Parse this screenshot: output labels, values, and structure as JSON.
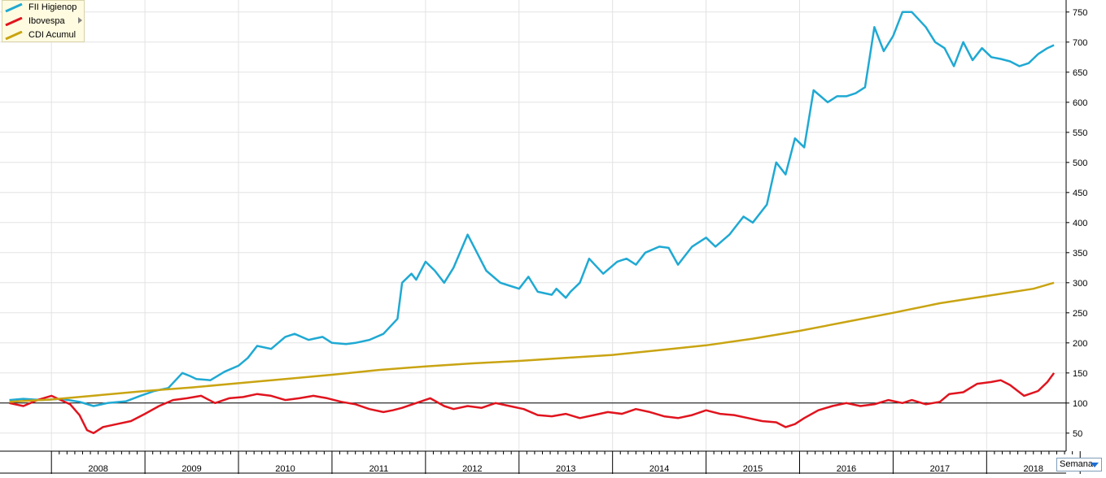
{
  "legend": {
    "items": [
      {
        "label": "FII Higienop",
        "color": "#1fa9d3"
      },
      {
        "label": "Ibovespa",
        "color": "#e0141e"
      },
      {
        "label": "CDI Acumul",
        "color": "#c9a412"
      }
    ]
  },
  "period_selector": {
    "label": "Semana"
  },
  "chart_data": {
    "type": "line",
    "title": "",
    "xlabel": "",
    "ylabel": "",
    "x_tick_labels": [
      "2008",
      "2009",
      "2010",
      "2011",
      "2012",
      "2013",
      "2014",
      "2015",
      "2016",
      "2017",
      "2018"
    ],
    "y_ticks": [
      50,
      100,
      150,
      200,
      250,
      300,
      350,
      400,
      450,
      500,
      550,
      600,
      650,
      700,
      750
    ],
    "ylim": [
      20,
      770
    ],
    "xlim": [
      2007.45,
      2018.85
    ],
    "grid": true,
    "legend_position": "top-left",
    "reference_line": 100,
    "series": [
      {
        "name": "FII Higienop",
        "color": "#1fa9d3",
        "x": [
          2007.55,
          2007.7,
          2007.9,
          2008.1,
          2008.3,
          2008.45,
          2008.6,
          2008.8,
          2008.95,
          2009.1,
          2009.25,
          2009.4,
          2009.48,
          2009.55,
          2009.7,
          2009.85,
          2010.0,
          2010.1,
          2010.2,
          2010.35,
          2010.5,
          2010.6,
          2010.75,
          2010.9,
          2011.0,
          2011.15,
          2011.25,
          2011.4,
          2011.55,
          2011.7,
          2011.75,
          2011.85,
          2011.9,
          2012.0,
          2012.1,
          2012.2,
          2012.3,
          2012.45,
          2012.55,
          2012.65,
          2012.8,
          2012.9,
          2013.0,
          2013.1,
          2013.2,
          2013.35,
          2013.4,
          2013.5,
          2013.55,
          2013.65,
          2013.75,
          2013.9,
          2014.05,
          2014.15,
          2014.25,
          2014.35,
          2014.5,
          2014.6,
          2014.7,
          2014.85,
          2015.0,
          2015.1,
          2015.25,
          2015.4,
          2015.5,
          2015.65,
          2015.75,
          2015.85,
          2015.95,
          2016.05,
          2016.15,
          2016.3,
          2016.4,
          2016.5,
          2016.6,
          2016.7,
          2016.8,
          2016.9,
          2017.0,
          2017.1,
          2017.2,
          2017.35,
          2017.45,
          2017.55,
          2017.65,
          2017.75,
          2017.85,
          2017.95,
          2018.05,
          2018.15,
          2018.25,
          2018.35,
          2018.45,
          2018.55,
          2018.65,
          2018.72
        ],
        "y": [
          105,
          107,
          105,
          107,
          102,
          95,
          100,
          103,
          112,
          120,
          125,
          150,
          145,
          140,
          138,
          152,
          162,
          175,
          195,
          190,
          210,
          215,
          205,
          210,
          200,
          198,
          200,
          205,
          215,
          240,
          300,
          315,
          305,
          335,
          320,
          300,
          325,
          380,
          350,
          320,
          300,
          295,
          290,
          310,
          285,
          280,
          290,
          275,
          285,
          300,
          340,
          315,
          335,
          340,
          330,
          350,
          360,
          358,
          330,
          360,
          375,
          360,
          380,
          410,
          400,
          430,
          500,
          480,
          540,
          525,
          620,
          600,
          610,
          610,
          615,
          625,
          725,
          685,
          710,
          750,
          750,
          725,
          700,
          690,
          660,
          700,
          670,
          690,
          675,
          672,
          668,
          660,
          665,
          680,
          690,
          695
        ]
      },
      {
        "name": "Ibovespa",
        "color": "#e0141e",
        "x": [
          2007.55,
          2007.7,
          2007.85,
          2008.0,
          2008.1,
          2008.2,
          2008.3,
          2008.38,
          2008.45,
          2008.55,
          2008.7,
          2008.85,
          2009.0,
          2009.15,
          2009.3,
          2009.45,
          2009.6,
          2009.75,
          2009.9,
          2010.05,
          2010.2,
          2010.35,
          2010.5,
          2010.65,
          2010.8,
          2010.95,
          2011.1,
          2011.25,
          2011.4,
          2011.55,
          2011.65,
          2011.75,
          2011.9,
          2012.05,
          2012.2,
          2012.3,
          2012.45,
          2012.6,
          2012.75,
          2012.9,
          2013.05,
          2013.2,
          2013.35,
          2013.5,
          2013.65,
          2013.8,
          2013.95,
          2014.1,
          2014.25,
          2014.4,
          2014.55,
          2014.7,
          2014.85,
          2015.0,
          2015.15,
          2015.3,
          2015.45,
          2015.6,
          2015.75,
          2015.85,
          2015.95,
          2016.05,
          2016.2,
          2016.35,
          2016.5,
          2016.65,
          2016.8,
          2016.95,
          2017.1,
          2017.2,
          2017.35,
          2017.5,
          2017.6,
          2017.75,
          2017.9,
          2018.05,
          2018.15,
          2018.25,
          2018.4,
          2018.55,
          2018.65,
          2018.72
        ],
        "y": [
          100,
          95,
          105,
          112,
          105,
          98,
          80,
          55,
          50,
          60,
          65,
          70,
          82,
          95,
          105,
          108,
          112,
          100,
          108,
          110,
          115,
          112,
          105,
          108,
          112,
          108,
          102,
          98,
          90,
          85,
          88,
          92,
          100,
          108,
          95,
          90,
          95,
          92,
          100,
          95,
          90,
          80,
          78,
          82,
          75,
          80,
          85,
          82,
          90,
          85,
          78,
          75,
          80,
          88,
          82,
          80,
          75,
          70,
          68,
          60,
          65,
          75,
          88,
          95,
          100,
          95,
          98,
          105,
          100,
          105,
          98,
          102,
          115,
          118,
          132,
          135,
          138,
          130,
          112,
          120,
          135,
          150
        ]
      },
      {
        "name": "CDI Acumul",
        "color": "#c9a412",
        "x": [
          2007.55,
          2008.0,
          2008.5,
          2009.0,
          2009.5,
          2010.0,
          2010.5,
          2011.0,
          2011.5,
          2012.0,
          2012.5,
          2013.0,
          2013.5,
          2014.0,
          2014.5,
          2015.0,
          2015.5,
          2016.0,
          2016.5,
          2017.0,
          2017.5,
          2018.0,
          2018.5,
          2018.72
        ],
        "y": [
          102,
          106,
          113,
          120,
          126,
          133,
          140,
          147,
          155,
          161,
          166,
          170,
          175,
          180,
          188,
          196,
          207,
          220,
          235,
          250,
          266,
          278,
          290,
          300
        ]
      }
    ]
  }
}
